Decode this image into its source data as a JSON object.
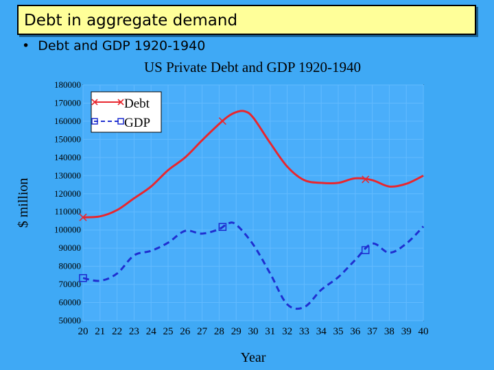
{
  "slide": {
    "title": "Debt in aggregate demand",
    "bullet_marker": "•",
    "bullet_text": "Debt and GDP 1920-1940"
  },
  "chart_data": {
    "type": "line",
    "title": "US Private Debt and GDP 1920-1940",
    "xlabel": "Year",
    "ylabel": "$ million",
    "xlim": [
      20,
      40
    ],
    "ylim": [
      50000,
      180000
    ],
    "x_ticks": [
      "20",
      "21",
      "22",
      "23",
      "24",
      "25",
      "26",
      "27",
      "28",
      "29",
      "30",
      "31",
      "32",
      "33",
      "34",
      "35",
      "36",
      "37",
      "38",
      "39",
      "40"
    ],
    "y_ticks": [
      "50000",
      "60000",
      "70000",
      "80000",
      "90000",
      "100000",
      "110000",
      "120000",
      "130000",
      "140000",
      "150000",
      "160000",
      "170000",
      "180000"
    ],
    "grid": true,
    "legend_position": "top-left",
    "series": [
      {
        "name": "Debt",
        "color": "#e8262e",
        "style": "solid",
        "marker": "x",
        "marker_x": [
          20,
          28.2,
          36.6
        ],
        "x": [
          20,
          21,
          22,
          23,
          24,
          25,
          26,
          27,
          28,
          28.5,
          29,
          29.5,
          30,
          31,
          32,
          33,
          34,
          35,
          36,
          37,
          38,
          39,
          40
        ],
        "values": [
          107000,
          107500,
          111000,
          117500,
          124000,
          133000,
          140000,
          149500,
          158500,
          162500,
          165000,
          165500,
          162000,
          148000,
          135000,
          127500,
          126000,
          126000,
          128500,
          127500,
          124000,
          125500,
          130000
        ]
      },
      {
        "name": "GDP",
        "color": "#1f2fd0",
        "style": "dashed",
        "marker": "square",
        "marker_x": [
          20,
          28.2,
          36.6
        ],
        "x": [
          20,
          21,
          22,
          23,
          24,
          25,
          26,
          27,
          28,
          28.5,
          29,
          30,
          31,
          32,
          33,
          34,
          35,
          36,
          37,
          38,
          39,
          40
        ],
        "values": [
          73500,
          72000,
          76000,
          86000,
          88500,
          93000,
          99500,
          98000,
          100500,
          103500,
          103000,
          92000,
          76000,
          59000,
          57500,
          67000,
          74000,
          83500,
          92500,
          87500,
          92500,
          102000
        ]
      }
    ]
  }
}
